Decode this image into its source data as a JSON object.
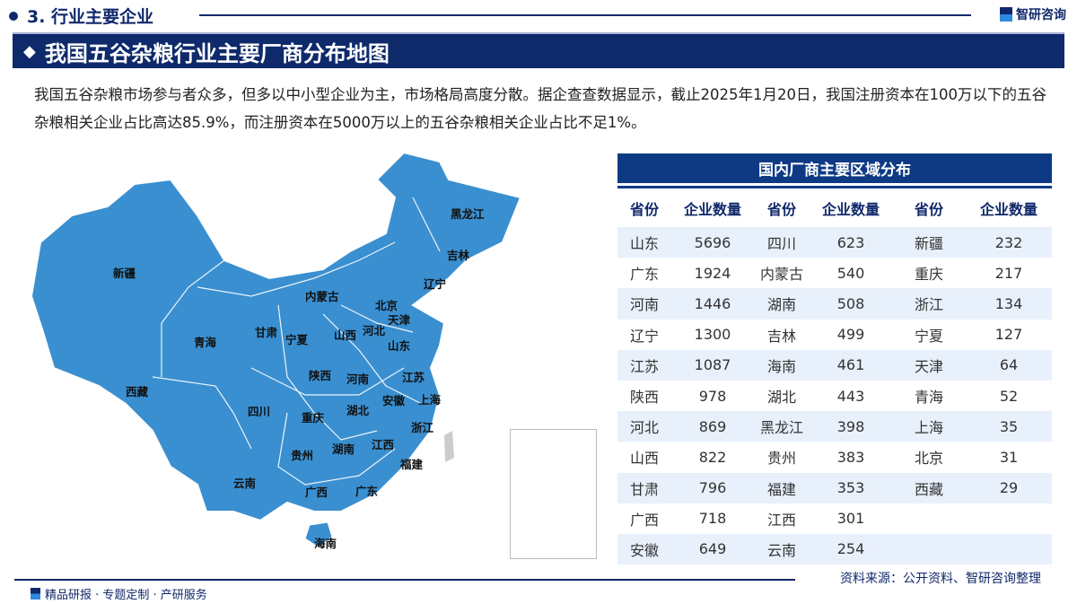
{
  "section": {
    "title": "3. 行业主要企业"
  },
  "brand": "智研咨询",
  "banner": {
    "title": "我国五谷杂粮行业主要厂商分布地图"
  },
  "description": "我国五谷杂粮市场参与者众多，但多以中小型企业为主，市场格局高度分散。据企查查数据显示，截止2025年1月20日，我国注册资本在100万以下的五谷杂粮相关企业占比高达85.9%，而注册资本在5000万以上的五谷杂粮相关企业占比不足1%。",
  "map": {
    "labels": [
      "黑龙江",
      "吉林",
      "辽宁",
      "新疆",
      "内蒙古",
      "北京",
      "天津",
      "河北",
      "甘肃",
      "宁夏",
      "山西",
      "山东",
      "青海",
      "陕西",
      "河南",
      "江苏",
      "安徽",
      "上海",
      "西藏",
      "四川",
      "重庆",
      "湖北",
      "浙江",
      "贵州",
      "湖南",
      "江西",
      "福建",
      "云南",
      "广西",
      "广东",
      "海南"
    ],
    "fill": "#3a8fd0"
  },
  "table": {
    "title": "国内厂商主要区域分布",
    "headers": [
      "省份",
      "企业数量",
      "省份",
      "企业数量",
      "省份",
      "企业数量"
    ],
    "rows": [
      [
        "山东",
        "5696",
        "四川",
        "623",
        "新疆",
        "232"
      ],
      [
        "广东",
        "1924",
        "内蒙古",
        "540",
        "重庆",
        "217"
      ],
      [
        "河南",
        "1446",
        "湖南",
        "508",
        "浙江",
        "134"
      ],
      [
        "辽宁",
        "1300",
        "吉林",
        "499",
        "宁夏",
        "127"
      ],
      [
        "江苏",
        "1087",
        "海南",
        "461",
        "天津",
        "64"
      ],
      [
        "陕西",
        "978",
        "湖北",
        "443",
        "青海",
        "52"
      ],
      [
        "河北",
        "869",
        "黑龙江",
        "398",
        "上海",
        "35"
      ],
      [
        "山西",
        "822",
        "贵州",
        "383",
        "北京",
        "31"
      ],
      [
        "甘肃",
        "796",
        "福建",
        "353",
        "西藏",
        "29"
      ],
      [
        "广西",
        "718",
        "江西",
        "301",
        "",
        ""
      ],
      [
        "安徽",
        "649",
        "云南",
        "254",
        "",
        ""
      ]
    ]
  },
  "source": "资料来源：公开资料、智研咨询整理",
  "footer": "精品研报 · 专题定制 · 产研服务"
}
